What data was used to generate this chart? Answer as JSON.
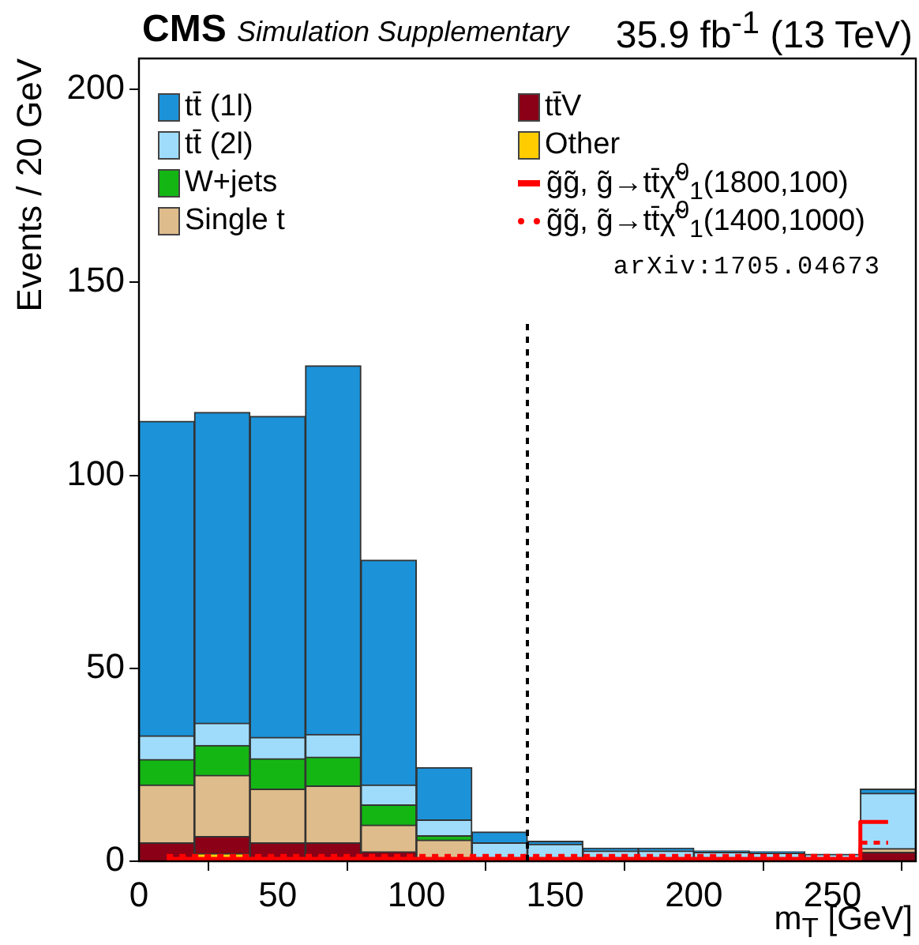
{
  "chart_data": {
    "type": "bar",
    "title": "CMS",
    "subtitle": "Simulation Supplementary",
    "xlabel": "m$_{T}$ [GeV]",
    "ylabel": "Events / 20 GeV",
    "annotations": [
      "35.9 fb$^{-1}$ (13 TeV)",
      "arXiv:1705.04673"
    ],
    "x": [
      10,
      30,
      50,
      70,
      90,
      110,
      130,
      150,
      170,
      190,
      210,
      230,
      250,
      270
    ],
    "stacked": true,
    "series": [
      {
        "name": "Other",
        "color": "#ffcc00",
        "values": [
          null,
          2.0,
          null,
          null,
          null,
          null,
          null,
          null,
          null,
          null,
          null,
          null,
          null,
          null
        ]
      },
      {
        "name": "tt̄V",
        "color": "#8b0016",
        "values": [
          4.8,
          4.4,
          4.8,
          4.8,
          2.5,
          null,
          null,
          null,
          null,
          null,
          null,
          null,
          null,
          2.3
        ]
      },
      {
        "name": "Single t",
        "color": "#dfbc8b",
        "values": [
          15.0,
          15.9,
          13.9,
          14.7,
          6.9,
          5.5,
          null,
          null,
          null,
          null,
          null,
          null,
          null,
          1.0
        ]
      },
      {
        "name": "W+jets",
        "color": "#14b614",
        "values": [
          6.6,
          7.7,
          7.9,
          7.5,
          5.2,
          1.1,
          null,
          null,
          null,
          null,
          null,
          null,
          null,
          null
        ]
      },
      {
        "name": "tt̄ (2l)",
        "color": "#9fdcfc",
        "values": [
          6.1,
          5.8,
          5.5,
          5.9,
          5.2,
          4.1,
          4.8,
          4.4,
          2.7,
          2.7,
          2.3,
          2.1,
          1.8,
          14.3
        ]
      },
      {
        "name": "tt̄ (1l)",
        "color": "#1c93d9",
        "values": [
          81.5,
          80.5,
          83.2,
          95.5,
          58.2,
          13.6,
          2.8,
          0.8,
          0.7,
          0.7,
          0.4,
          0.4,
          null,
          1.1
        ]
      },
      {
        "name": "g̃g̃, g̃→tt̄χ̃$^{0}$$_{1}$(1800,100)",
        "type": "step",
        "line_style": "solid",
        "color": "#ff0000",
        "values": [
          0.6,
          0.6,
          0.6,
          0.6,
          0.6,
          0.6,
          0.6,
          0.6,
          0.6,
          0.6,
          0.6,
          0.6,
          0.6,
          10.2
        ]
      },
      {
        "name": "g̃g̃, g̃→tt̄χ̃$^{0}$$_{1}$(1400,1000)",
        "type": "step",
        "line_style": "dotted",
        "color": "#ff0000",
        "values": [
          1.4,
          1.4,
          1.4,
          1.4,
          1.4,
          1.4,
          1.4,
          1.4,
          1.4,
          1.4,
          1.4,
          1.4,
          1.4,
          4.8
        ]
      }
    ],
    "xlim": [
      0,
      280
    ],
    "xticks": [
      0,
      50,
      100,
      150,
      200,
      250
    ],
    "ylim": [
      0,
      208
    ],
    "yticks": [
      0,
      50,
      100,
      150,
      200
    ],
    "ref_lines": [
      {
        "axis": "x",
        "value": 140,
        "line_style": "dotted",
        "color": "#000000"
      }
    ],
    "grid": false,
    "legend": "top"
  }
}
